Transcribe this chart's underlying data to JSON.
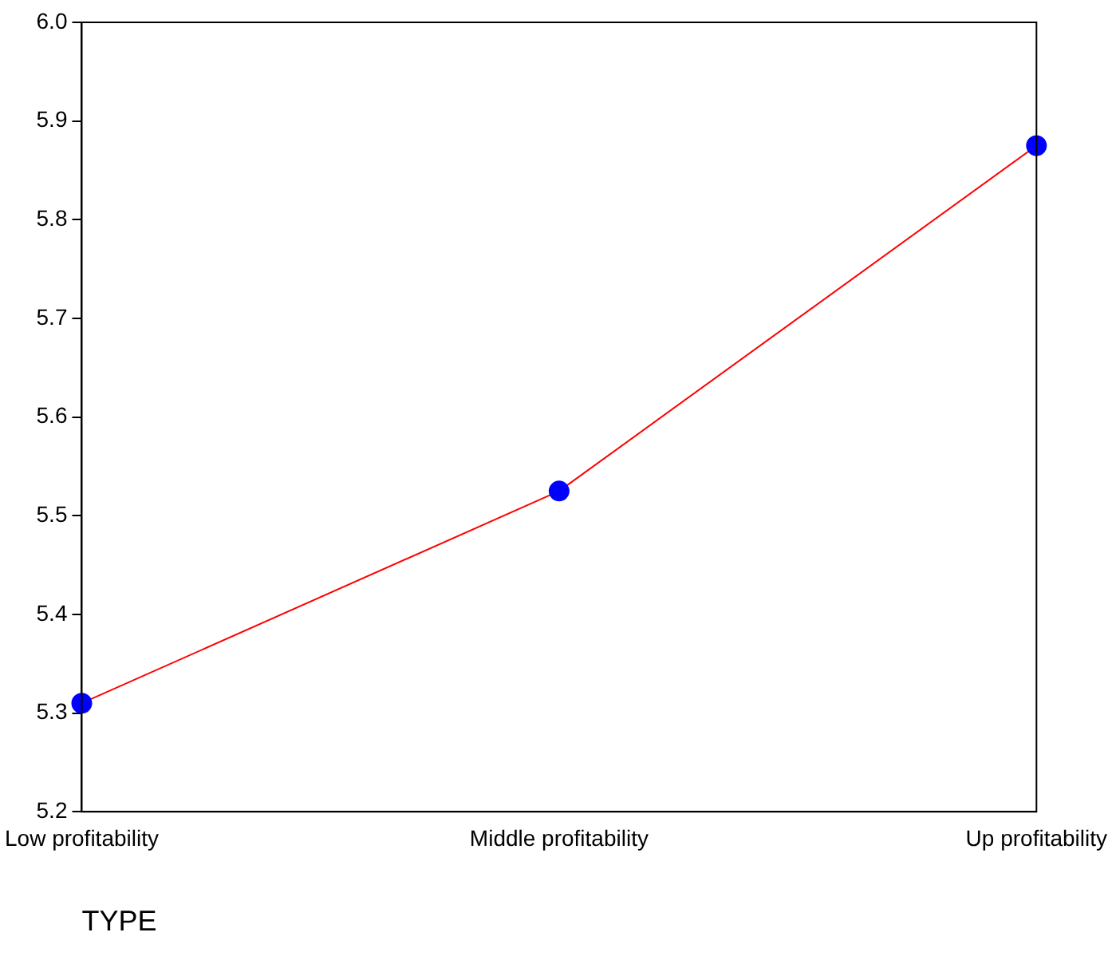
{
  "chart_data": {
    "type": "line",
    "xlabel": "TYPE",
    "categories": [
      "Low profitability",
      "Middle profitability",
      "Up profitability"
    ],
    "series": [
      {
        "color": "#ff0000",
        "colors": [
          "#0000ff",
          "#0000ff",
          "#0000ff"
        ],
        "values": [
          5.31,
          5.525,
          5.875
        ]
      }
    ],
    "marker": "circle",
    "ylim": [
      5.2,
      6.0
    ],
    "yticks": [
      5.2,
      5.3,
      5.4,
      5.5,
      5.6,
      5.7,
      5.8,
      5.9,
      {
        "value": 6,
        "label": "6.0"
      }
    ],
    "grid": false,
    "legend": false
  }
}
